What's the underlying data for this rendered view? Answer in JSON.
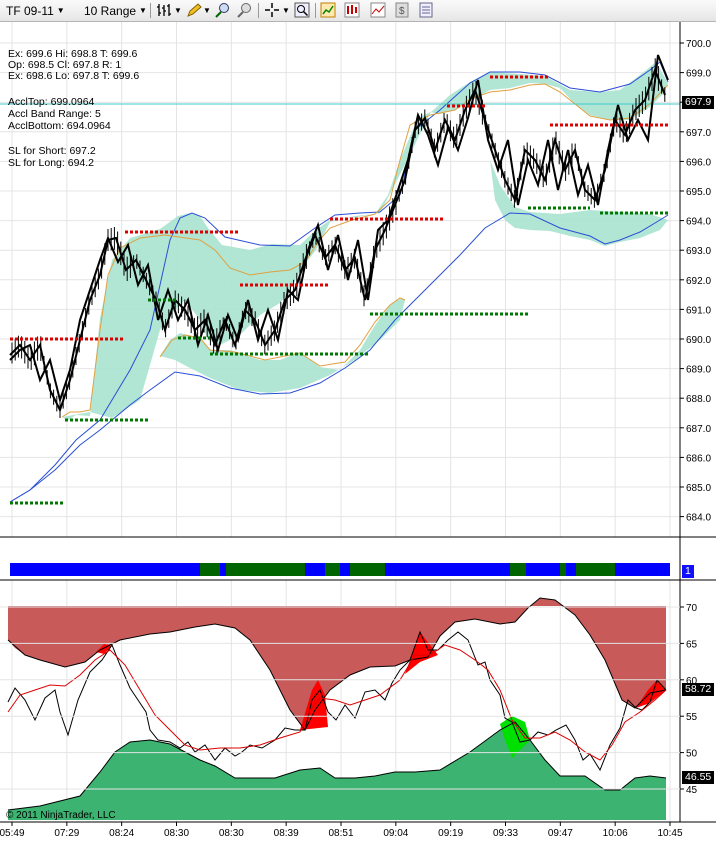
{
  "toolbar": {
    "instrument": "TF 09-11",
    "bar_type": "10 Range",
    "icons": [
      "bar-style-icon",
      "pencil-draw-icon",
      "zoom-in-icon",
      "zoom-out-icon",
      "crosshair-icon",
      "magnifier-icon",
      "indicators-icon",
      "strategies-icon",
      "chart-trader-icon",
      "dollar-icon",
      "properties-icon"
    ]
  },
  "info_lines": {
    "ex1": "Ex: 699.6 Hi: 698.8 T: 699.6",
    "op": "Op: 698.5 Cl: 697.8 R: 1",
    "ex2": "Ex: 698.6 Lo: 697.8 T: 699.6",
    "accl_top": "AcclTop: 699.0964",
    "accl_range": "Accl Band Range: 5",
    "accl_bottom": "AcclBottom: 694.0964",
    "sl_short": "SL for Short: 697.2",
    "sl_long": "SL for Long: 694.2"
  },
  "price_axis": {
    "ticks": [
      "700.0",
      "699.0",
      "698.0",
      "697.0",
      "696.0",
      "695.0",
      "694.0",
      "693.0",
      "692.0",
      "691.0",
      "690.0",
      "689.0",
      "688.0",
      "687.0",
      "686.0",
      "685.0",
      "684.0"
    ],
    "last_price": "697.9",
    "last_price_bg": "#000000"
  },
  "trend_panel": {
    "marker": "1",
    "colors": {
      "up": "#0000ff",
      "down": "#006400"
    }
  },
  "osc_axis": {
    "ticks": [
      "70",
      "65",
      "60",
      "55",
      "50",
      "45"
    ],
    "upper_value": "58.72",
    "lower_value": "46.55"
  },
  "time_axis": [
    "05:49",
    "07:29",
    "08:24",
    "08:30",
    "08:30",
    "08:39",
    "08:51",
    "09:04",
    "09:19",
    "09:33",
    "09:47",
    "10:06",
    "10:45"
  ],
  "copyright": "© 2011 NinjaTrader, LLC",
  "colors": {
    "band_fill": "#a9e3d0",
    "upper_fill": "#c85a5a",
    "lower_fill": "#3cb371",
    "stop_short": "#dd0000",
    "stop_long": "#007700",
    "hline": "#40c8c8"
  }
}
